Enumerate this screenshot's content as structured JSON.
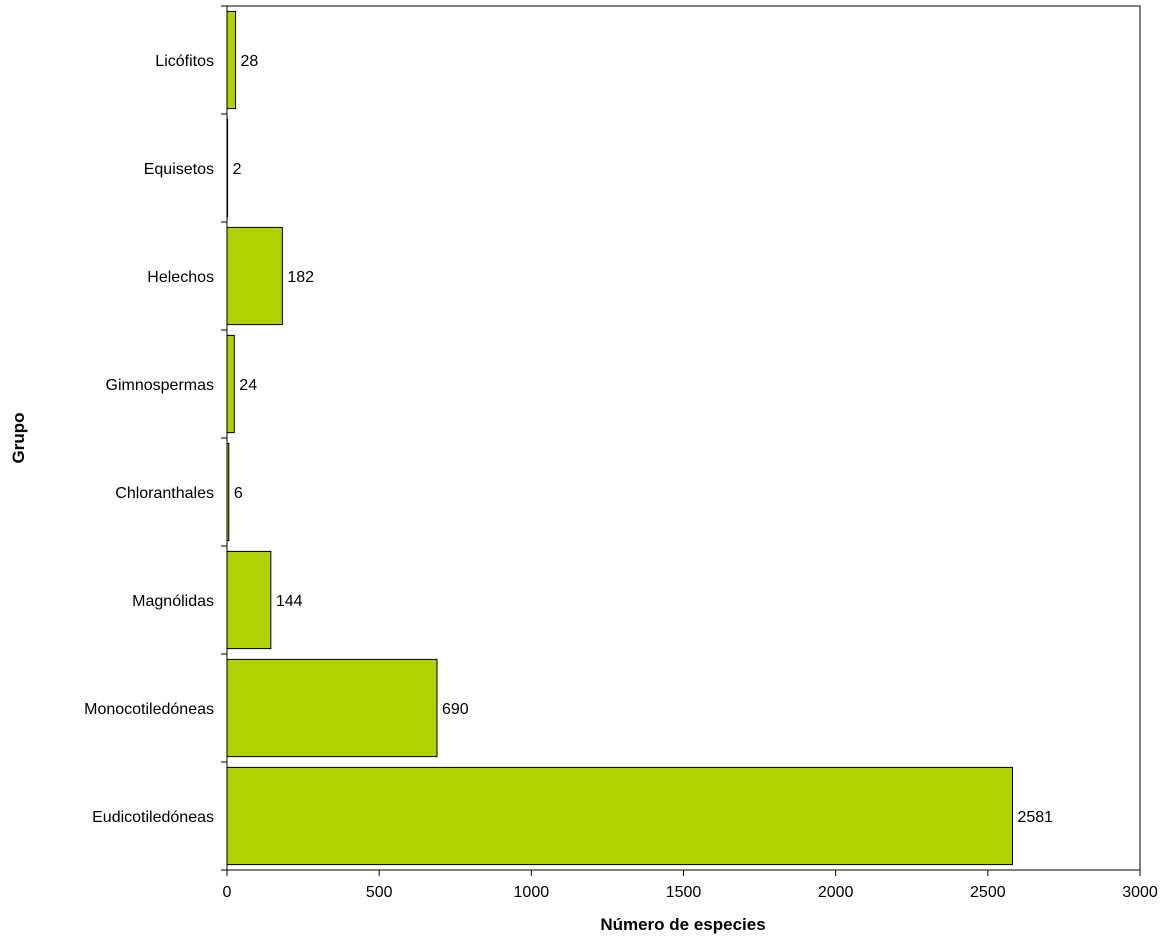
{
  "chart_data": {
    "type": "bar",
    "orientation": "horizontal",
    "title": "",
    "xlabel": "Número de especies",
    "ylabel": "Grupo",
    "categories": [
      "Licófitos",
      "Equisetos",
      "Helechos",
      "Gimnospermas",
      "Chloranthales",
      "Magnólidas",
      "Monocotiledóneas",
      "Eudicotiledóneas"
    ],
    "values": [
      28,
      2,
      182,
      24,
      6,
      144,
      690,
      2581
    ],
    "xlim": [
      0,
      3000
    ],
    "xticks": [
      0,
      500,
      1000,
      1500,
      2000,
      2500,
      3000
    ],
    "grid": false,
    "legend": "none",
    "bar_color": "#b0d000",
    "bar_edge_color": "#000000"
  }
}
